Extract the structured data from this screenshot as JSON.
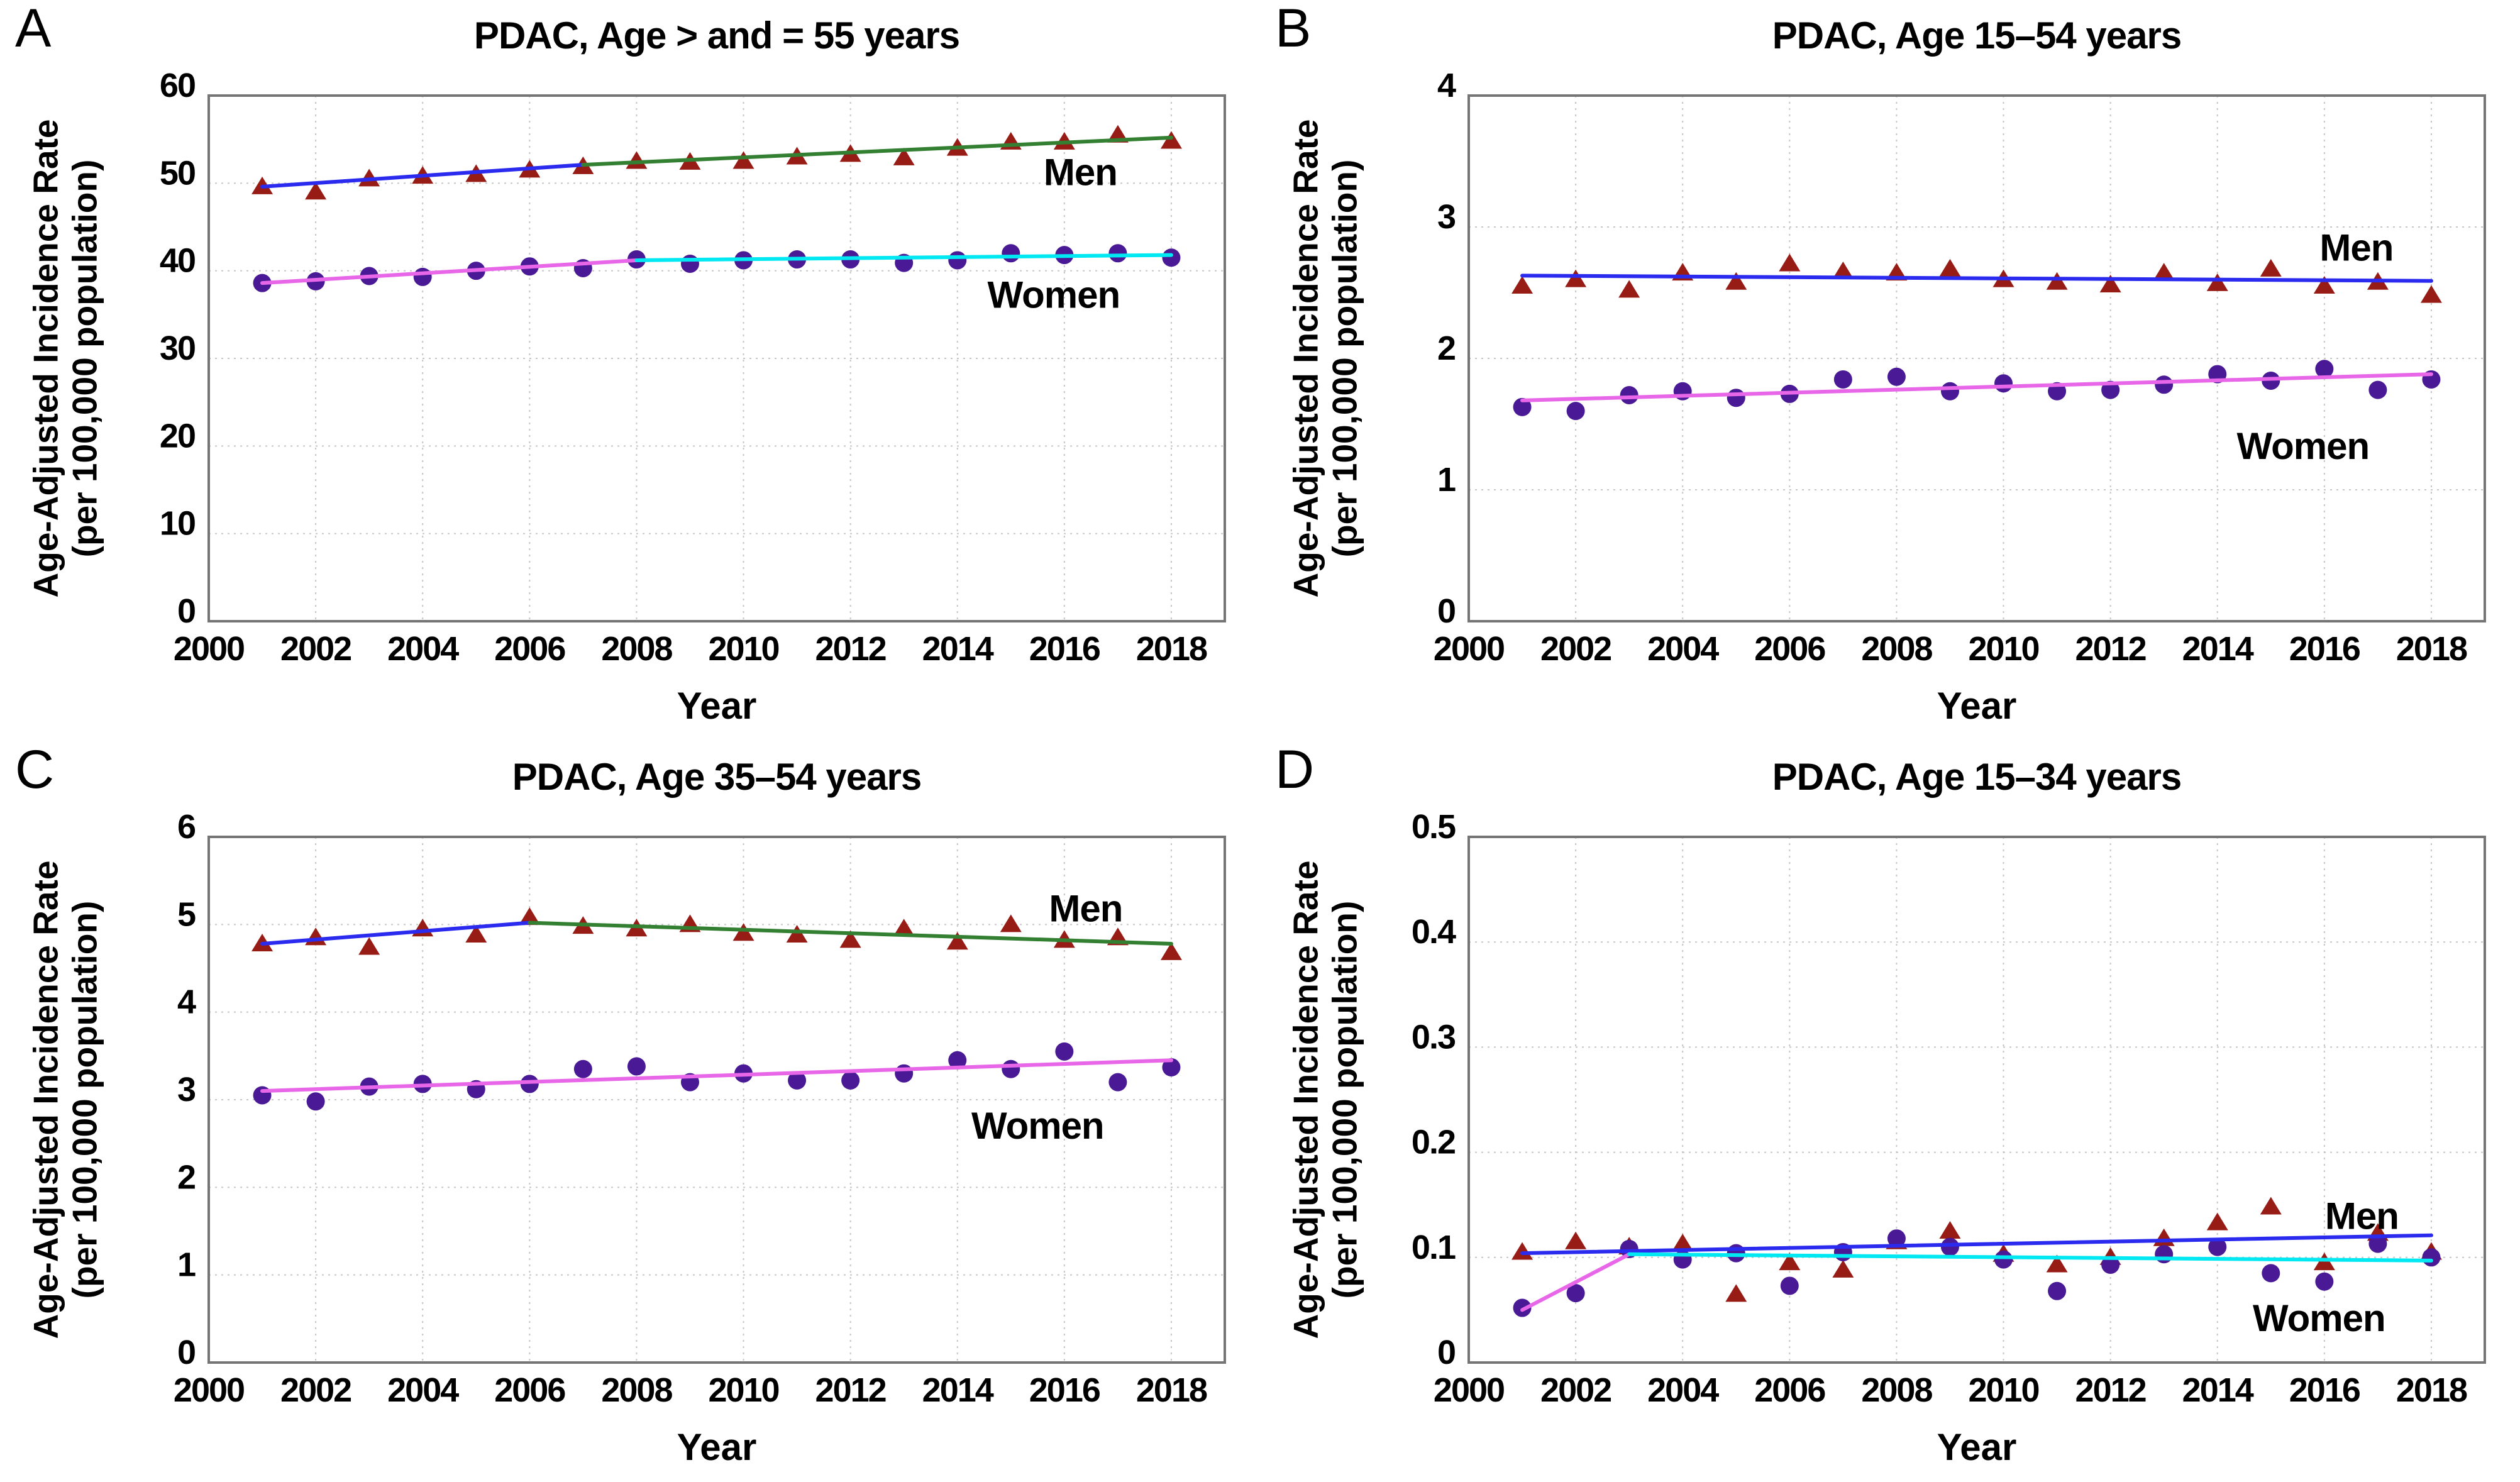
{
  "figure": {
    "background": "#ffffff"
  },
  "colors": {
    "men_marker": "#971c15",
    "women_marker": "#4a1a96",
    "trend_blue": "#2b2bf0",
    "trend_green": "#338033",
    "trend_pink": "#e866e8",
    "trend_cyan": "#00e8f2",
    "grid": "#c6c6c6",
    "frame": "#757575",
    "text": "#000000"
  },
  "series_labels": {
    "men": "Men",
    "women": "Women"
  },
  "chart_data": [
    {
      "type": "scatter",
      "letter": "A",
      "title": "PDAC, Age > and = 55 years",
      "ylabel_line1": "Age-Adjusted Incidence Rate",
      "ylabel_line2": "(per 100,000 population)",
      "xlabel": "Year",
      "xlim": [
        2000,
        2019
      ],
      "ylim": [
        0,
        60
      ],
      "xticks": [
        2000,
        2002,
        2004,
        2006,
        2008,
        2010,
        2012,
        2014,
        2016,
        2018
      ],
      "yticks": [
        0,
        10,
        20,
        30,
        40,
        50,
        60
      ],
      "ytick_labels": [
        "0",
        "10",
        "20",
        "30",
        "40",
        "50",
        "60"
      ],
      "x": [
        2001,
        2002,
        2003,
        2004,
        2005,
        2006,
        2007,
        2008,
        2009,
        2010,
        2011,
        2012,
        2013,
        2014,
        2015,
        2016,
        2017,
        2018
      ],
      "series": [
        {
          "name": "Men",
          "marker": "triangle",
          "color_key": "men_marker",
          "values": [
            49.6,
            49.0,
            50.5,
            50.8,
            51.0,
            51.5,
            51.9,
            52.5,
            52.4,
            52.5,
            53.0,
            53.3,
            52.9,
            54.0,
            54.7,
            54.7,
            55.5,
            54.8
          ]
        },
        {
          "name": "Women",
          "marker": "circle",
          "color_key": "women_marker",
          "values": [
            38.6,
            38.8,
            39.4,
            39.3,
            40.0,
            40.5,
            40.3,
            41.3,
            40.8,
            41.2,
            41.3,
            41.3,
            40.9,
            41.2,
            42.0,
            41.8,
            42.0,
            41.5
          ]
        }
      ],
      "trend_lines": [
        {
          "color_key": "trend_blue",
          "x1": 2001,
          "y1": 49.6,
          "x2": 2007,
          "y2": 52.1
        },
        {
          "color_key": "trend_green",
          "x1": 2007,
          "y1": 52.1,
          "x2": 2018,
          "y2": 55.2
        },
        {
          "color_key": "trend_pink",
          "x1": 2001,
          "y1": 38.6,
          "x2": 2008,
          "y2": 41.2
        },
        {
          "color_key": "trend_cyan",
          "x1": 2008,
          "y1": 41.2,
          "x2": 2018,
          "y2": 41.8
        }
      ],
      "labels": {
        "men": {
          "text": "Men",
          "x": 2016.3,
          "y": 51.2
        },
        "women": {
          "text": "Women",
          "x": 2015.8,
          "y": 37.2
        }
      },
      "grid": true,
      "legend_position": "inline-right"
    },
    {
      "type": "scatter",
      "letter": "B",
      "title": "PDAC, Age 15–54 years",
      "ylabel_line1": "Age-Adjusted Incidence Rate",
      "ylabel_line2": "(per 100,000 population)",
      "xlabel": "Year",
      "xlim": [
        2000,
        2019
      ],
      "ylim": [
        0,
        4
      ],
      "xticks": [
        2000,
        2002,
        2004,
        2006,
        2008,
        2010,
        2012,
        2014,
        2016,
        2018
      ],
      "yticks": [
        0,
        1,
        2,
        3,
        4
      ],
      "ytick_labels": [
        "0",
        "1",
        "2",
        "3",
        "4"
      ],
      "x": [
        2001,
        2002,
        2003,
        2004,
        2005,
        2006,
        2007,
        2008,
        2009,
        2010,
        2011,
        2012,
        2013,
        2014,
        2015,
        2016,
        2017,
        2018
      ],
      "series": [
        {
          "name": "Men",
          "marker": "triangle",
          "color_key": "men_marker",
          "values": [
            2.55,
            2.6,
            2.52,
            2.65,
            2.58,
            2.72,
            2.66,
            2.65,
            2.68,
            2.6,
            2.58,
            2.56,
            2.65,
            2.57,
            2.68,
            2.55,
            2.58,
            2.48
          ]
        },
        {
          "name": "Women",
          "marker": "circle",
          "color_key": "women_marker",
          "values": [
            1.63,
            1.6,
            1.72,
            1.75,
            1.7,
            1.73,
            1.84,
            1.86,
            1.75,
            1.81,
            1.75,
            1.76,
            1.8,
            1.88,
            1.83,
            1.92,
            1.76,
            1.84
          ]
        }
      ],
      "trend_lines": [
        {
          "color_key": "trend_blue",
          "x1": 2001,
          "y1": 2.63,
          "x2": 2018,
          "y2": 2.59
        },
        {
          "color_key": "trend_pink",
          "x1": 2001,
          "y1": 1.68,
          "x2": 2018,
          "y2": 1.88
        }
      ],
      "labels": {
        "men": {
          "text": "Men",
          "x": 2016.6,
          "y": 2.84
        },
        "women": {
          "text": "Women",
          "x": 2015.6,
          "y": 1.33
        }
      },
      "grid": true,
      "legend_position": "inline-right"
    },
    {
      "type": "scatter",
      "letter": "C",
      "title": "PDAC, Age 35–54 years",
      "ylabel_line1": "Age-Adjusted Incidence Rate",
      "ylabel_line2": "(per 100,000 population)",
      "xlabel": "Year",
      "xlim": [
        2000,
        2019
      ],
      "ylim": [
        0,
        6
      ],
      "xticks": [
        2000,
        2002,
        2004,
        2006,
        2008,
        2010,
        2012,
        2014,
        2016,
        2018
      ],
      "yticks": [
        0,
        1,
        2,
        3,
        4,
        5,
        6
      ],
      "ytick_labels": [
        "0",
        "1",
        "2",
        "3",
        "4",
        "5",
        "6"
      ],
      "x": [
        2001,
        2002,
        2003,
        2004,
        2005,
        2006,
        2007,
        2008,
        2009,
        2010,
        2011,
        2012,
        2013,
        2014,
        2015,
        2016,
        2017,
        2018
      ],
      "series": [
        {
          "name": "Men",
          "marker": "triangle",
          "color_key": "men_marker",
          "values": [
            4.78,
            4.85,
            4.74,
            4.95,
            4.88,
            5.08,
            4.98,
            4.95,
            5.0,
            4.9,
            4.88,
            4.82,
            4.95,
            4.8,
            5.0,
            4.82,
            4.85,
            4.68
          ]
        },
        {
          "name": "Women",
          "marker": "circle",
          "color_key": "women_marker",
          "values": [
            3.05,
            2.98,
            3.15,
            3.18,
            3.12,
            3.18,
            3.35,
            3.38,
            3.2,
            3.3,
            3.22,
            3.22,
            3.3,
            3.45,
            3.35,
            3.55,
            3.2,
            3.37
          ]
        }
      ],
      "trend_lines": [
        {
          "color_key": "trend_blue",
          "x1": 2001,
          "y1": 4.78,
          "x2": 2006,
          "y2": 5.02
        },
        {
          "color_key": "trend_green",
          "x1": 2006,
          "y1": 5.02,
          "x2": 2018,
          "y2": 4.78
        },
        {
          "color_key": "trend_pink",
          "x1": 2001,
          "y1": 3.1,
          "x2": 2018,
          "y2": 3.45
        }
      ],
      "labels": {
        "men": {
          "text": "Men",
          "x": 2016.4,
          "y": 5.18
        },
        "women": {
          "text": "Women",
          "x": 2015.5,
          "y": 2.7
        }
      },
      "grid": true,
      "legend_position": "inline-right"
    },
    {
      "type": "scatter",
      "letter": "D",
      "title": "PDAC, Age 15–34 years",
      "ylabel_line1": "Age-Adjusted Incidence Rate",
      "ylabel_line2": "(per 100,000 population)",
      "xlabel": "Year",
      "xlim": [
        2000,
        2019
      ],
      "ylim": [
        0,
        0.5
      ],
      "xticks": [
        2000,
        2002,
        2004,
        2006,
        2008,
        2010,
        2012,
        2014,
        2016,
        2018
      ],
      "yticks": [
        0,
        0.1,
        0.2,
        0.3,
        0.4,
        0.5
      ],
      "ytick_labels": [
        "0",
        "0.1",
        "0.2",
        "0.3",
        "0.4",
        "0.5"
      ],
      "x": [
        2001,
        2002,
        2003,
        2004,
        2005,
        2006,
        2007,
        2008,
        2009,
        2010,
        2011,
        2012,
        2013,
        2014,
        2015,
        2016,
        2017,
        2018
      ],
      "series": [
        {
          "name": "Men",
          "marker": "triangle",
          "color_key": "men_marker",
          "values": [
            0.105,
            0.115,
            0.11,
            0.113,
            0.065,
            0.095,
            0.088,
            0.115,
            0.125,
            0.103,
            0.093,
            0.1,
            0.118,
            0.133,
            0.148,
            0.095,
            0.123,
            0.105
          ]
        },
        {
          "name": "Women",
          "marker": "circle",
          "color_key": "women_marker",
          "values": [
            0.052,
            0.066,
            0.108,
            0.098,
            0.104,
            0.073,
            0.105,
            0.118,
            0.11,
            0.098,
            0.068,
            0.093,
            0.103,
            0.11,
            0.085,
            0.077,
            0.113,
            0.1
          ]
        }
      ],
      "trend_lines": [
        {
          "color_key": "trend_blue",
          "x1": 2001,
          "y1": 0.104,
          "x2": 2018,
          "y2": 0.121
        },
        {
          "color_key": "trend_pink",
          "x1": 2001,
          "y1": 0.05,
          "x2": 2003,
          "y2": 0.103
        },
        {
          "color_key": "trend_cyan",
          "x1": 2003,
          "y1": 0.103,
          "x2": 2018,
          "y2": 0.097
        }
      ],
      "labels": {
        "men": {
          "text": "Men",
          "x": 2016.7,
          "y": 0.139
        },
        "women": {
          "text": "Women",
          "x": 2015.9,
          "y": 0.042
        }
      },
      "grid": true,
      "legend_position": "inline-right"
    }
  ]
}
